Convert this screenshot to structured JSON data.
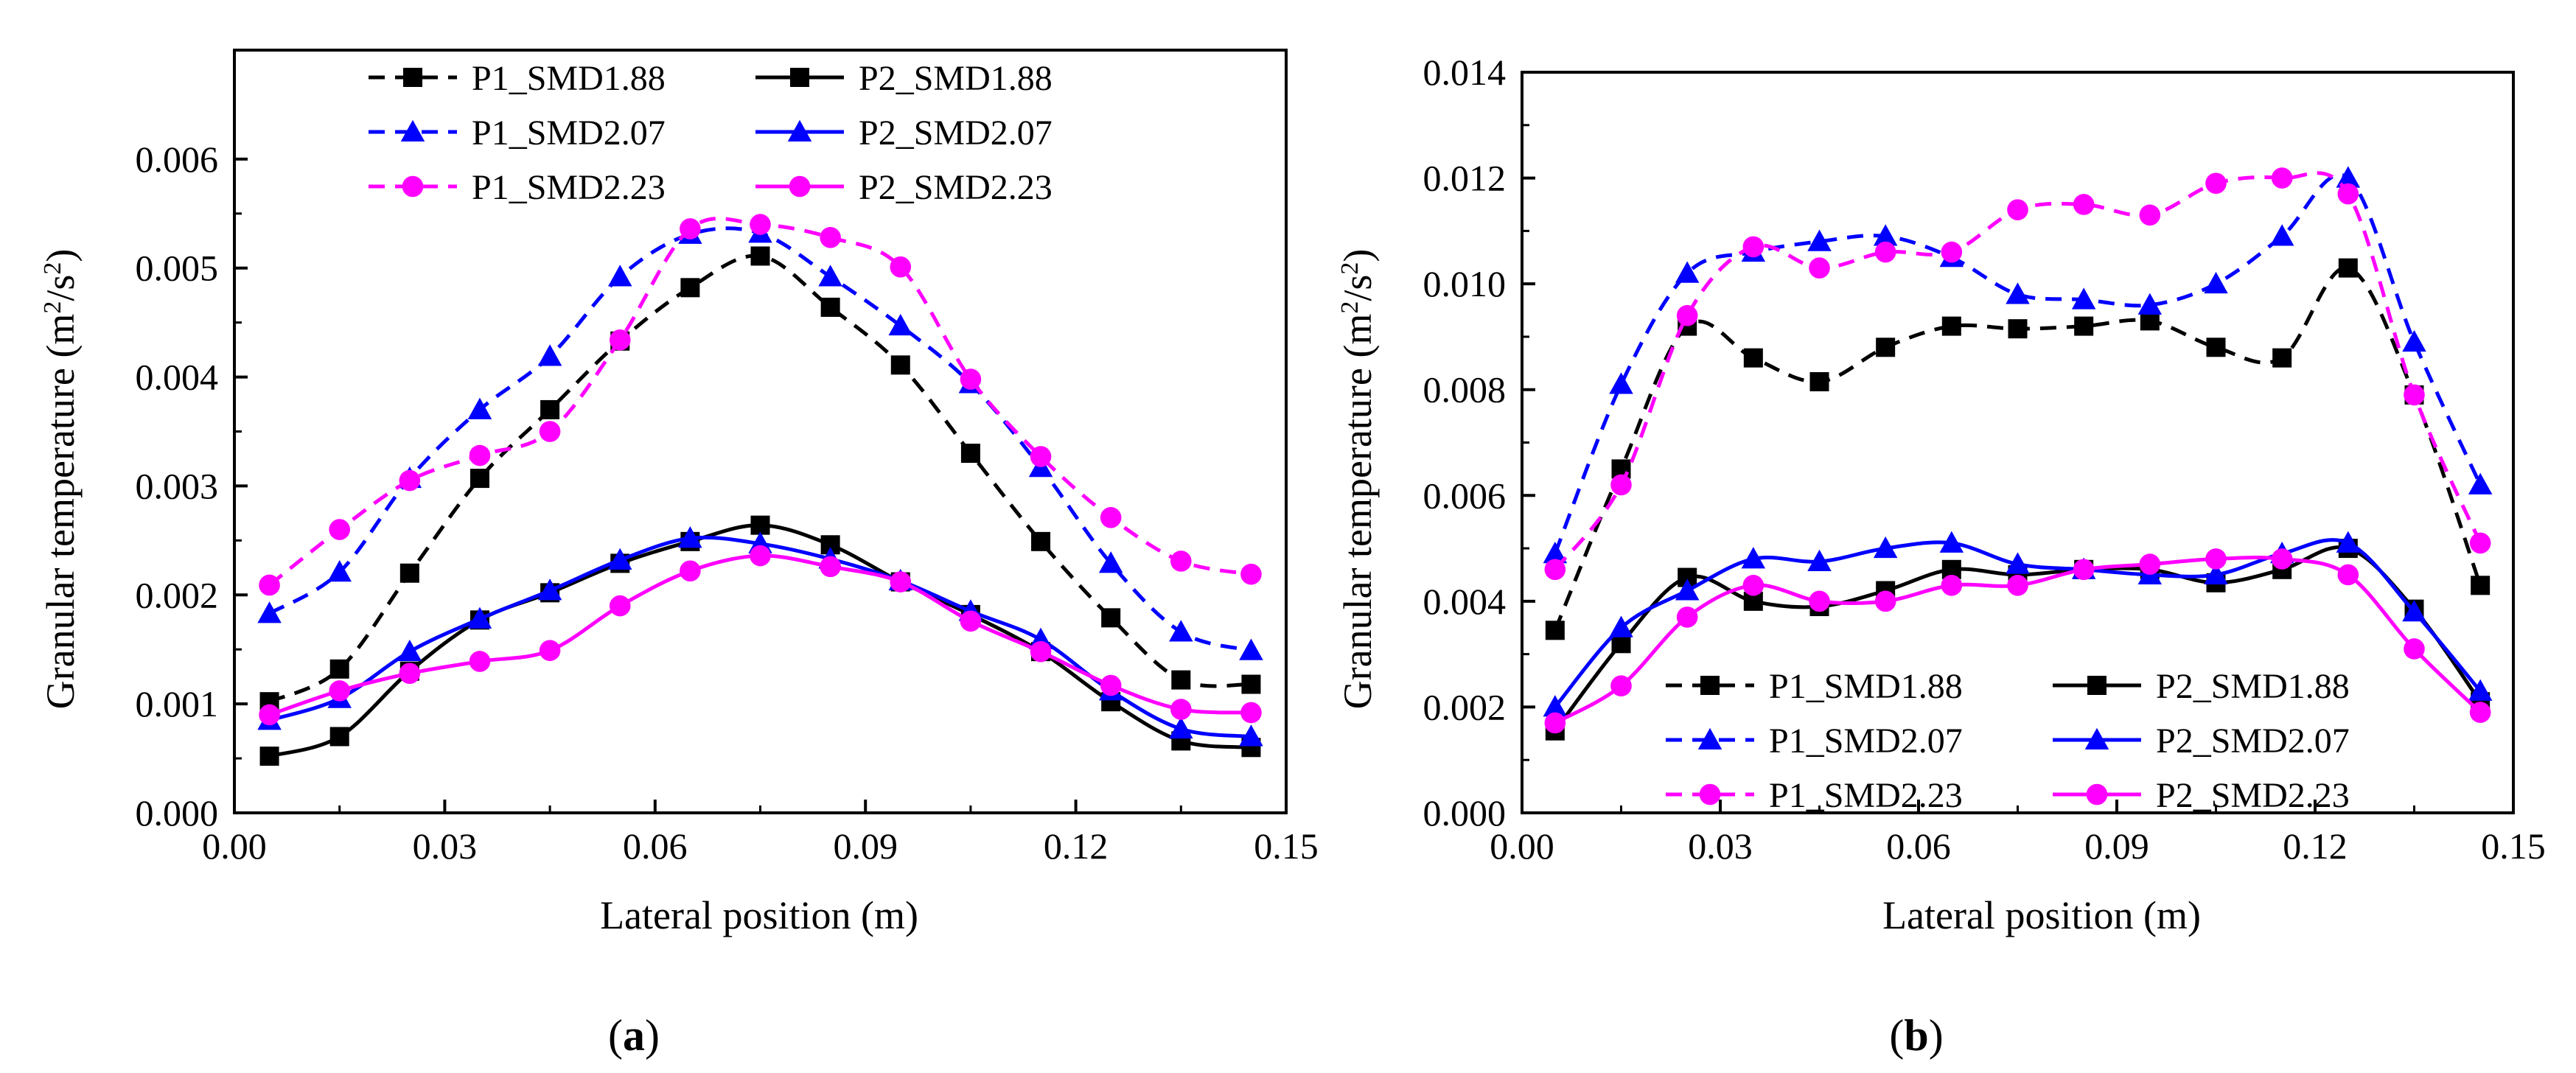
{
  "figure": {
    "panel_labels": [
      {
        "open": "(",
        "letter": "a",
        "close": ")"
      },
      {
        "open": "(",
        "letter": "b",
        "close": ")"
      }
    ]
  },
  "colors": {
    "P1_SMD1.88": "#000000",
    "P2_SMD1.88": "#000000",
    "P1_SMD2.07": "#0000ff",
    "P2_SMD2.07": "#0000ff",
    "P1_SMD2.23": "#ff00ff",
    "P2_SMD2.23": "#ff00ff"
  },
  "chart_data": [
    {
      "type": "line",
      "panel": "a",
      "xlabel": "Lateral position (m)",
      "ylabel": "Granular temperature (m2/s2)",
      "ylabel_parts": {
        "prefix": "Granular temperature (m",
        "sup1": "2",
        "mid": "/s",
        "sup2": "2",
        "suffix": ")"
      },
      "xlim": [
        0.0,
        0.15
      ],
      "ylim": [
        0.0,
        0.007
      ],
      "xticks": [
        0.0,
        0.03,
        0.06,
        0.09,
        0.12,
        0.15
      ],
      "xtick_labels": [
        "0.00",
        "0.03",
        "0.06",
        "0.09",
        "0.12",
        "0.15"
      ],
      "yticks": [
        0.0,
        0.001,
        0.002,
        0.003,
        0.004,
        0.005,
        0.006
      ],
      "ytick_labels": [
        "0.000",
        "0.001",
        "0.002",
        "0.003",
        "0.004",
        "0.005",
        "0.006"
      ],
      "legend_position": "top",
      "x": [
        0.005,
        0.015,
        0.025,
        0.035,
        0.045,
        0.055,
        0.065,
        0.075,
        0.085,
        0.095,
        0.105,
        0.115,
        0.125,
        0.135,
        0.145
      ],
      "series": [
        {
          "name": "P1_SMD1.88",
          "line": "dashed",
          "marker": "square",
          "values": [
            0.00102,
            0.00132,
            0.0022,
            0.00307,
            0.0037,
            0.00433,
            0.00482,
            0.00511,
            0.00464,
            0.00411,
            0.0033,
            0.00249,
            0.00179,
            0.00122,
            0.00118
          ]
        },
        {
          "name": "P2_SMD1.88",
          "line": "solid",
          "marker": "square",
          "values": [
            0.00052,
            0.0007,
            0.0013,
            0.00177,
            0.00202,
            0.00229,
            0.00249,
            0.00264,
            0.00246,
            0.00212,
            0.00182,
            0.00148,
            0.00102,
            0.00066,
            0.0006
          ]
        },
        {
          "name": "P1_SMD2.07",
          "line": "dashed",
          "marker": "triangle",
          "values": [
            0.00183,
            0.00221,
            0.00307,
            0.0037,
            0.00419,
            0.00492,
            0.00531,
            0.00532,
            0.00492,
            0.00447,
            0.00394,
            0.00317,
            0.00229,
            0.00166,
            0.00149
          ]
        },
        {
          "name": "P2_SMD2.07",
          "line": "solid",
          "marker": "triangle",
          "values": [
            0.00085,
            0.00105,
            0.00148,
            0.00178,
            0.00204,
            0.00232,
            0.00252,
            0.00247,
            0.00233,
            0.00213,
            0.00185,
            0.00159,
            0.00112,
            0.00077,
            0.0007
          ]
        },
        {
          "name": "P1_SMD2.23",
          "line": "dashed",
          "marker": "circle",
          "values": [
            0.00209,
            0.0026,
            0.00305,
            0.00328,
            0.0035,
            0.00434,
            0.00536,
            0.0054,
            0.00528,
            0.00501,
            0.00398,
            0.00327,
            0.00271,
            0.00231,
            0.00219
          ]
        },
        {
          "name": "P2_SMD2.23",
          "line": "solid",
          "marker": "circle",
          "values": [
            0.0009,
            0.00112,
            0.00128,
            0.00139,
            0.00149,
            0.0019,
            0.00222,
            0.00236,
            0.00226,
            0.00212,
            0.00176,
            0.00148,
            0.00117,
            0.00095,
            0.00092
          ]
        }
      ]
    },
    {
      "type": "line",
      "panel": "b",
      "xlabel": "Lateral position (m)",
      "ylabel": "Granular temperature (m2/s2)",
      "ylabel_parts": {
        "prefix": "Granular temperature (m",
        "sup1": "2",
        "mid": "/s",
        "sup2": "2",
        "suffix": ")"
      },
      "xlim": [
        0.0,
        0.15
      ],
      "ylim": [
        0.0,
        0.014
      ],
      "xticks": [
        0.0,
        0.03,
        0.06,
        0.09,
        0.12,
        0.15
      ],
      "xtick_labels": [
        "0.00",
        "0.03",
        "0.06",
        "0.09",
        "0.12",
        "0.15"
      ],
      "yticks": [
        0.0,
        0.002,
        0.004,
        0.006,
        0.008,
        0.01,
        0.012,
        0.014
      ],
      "ytick_labels": [
        "0.000",
        "0.002",
        "0.004",
        "0.006",
        "0.008",
        "0.010",
        "0.012",
        "0.014"
      ],
      "legend_position": "bottom",
      "x": [
        0.005,
        0.015,
        0.025,
        0.035,
        0.045,
        0.055,
        0.065,
        0.075,
        0.085,
        0.095,
        0.105,
        0.115,
        0.125,
        0.135,
        0.145
      ],
      "series": [
        {
          "name": "P1_SMD1.88",
          "line": "dashed",
          "marker": "square",
          "values": [
            0.00345,
            0.0065,
            0.0092,
            0.0086,
            0.00815,
            0.0088,
            0.0092,
            0.00915,
            0.0092,
            0.0093,
            0.0088,
            0.0086,
            0.0103,
            0.0079,
            0.0043
          ]
        },
        {
          "name": "P2_SMD1.88",
          "line": "solid",
          "marker": "square",
          "values": [
            0.00155,
            0.0032,
            0.00445,
            0.004,
            0.0039,
            0.0042,
            0.0046,
            0.0045,
            0.0046,
            0.0046,
            0.00435,
            0.0046,
            0.005,
            0.00385,
            0.0021
          ]
        },
        {
          "name": "P1_SMD2.07",
          "line": "dashed",
          "marker": "triangle",
          "values": [
            0.0049,
            0.0081,
            0.0102,
            0.0106,
            0.0108,
            0.0109,
            0.0105,
            0.0098,
            0.0097,
            0.0096,
            0.01,
            0.0109,
            0.012,
            0.0089,
            0.0062
          ]
        },
        {
          "name": "P2_SMD2.07",
          "line": "solid",
          "marker": "triangle",
          "values": [
            0.002,
            0.0035,
            0.0042,
            0.0048,
            0.00475,
            0.005,
            0.0051,
            0.0047,
            0.0046,
            0.0045,
            0.0045,
            0.0049,
            0.0051,
            0.0038,
            0.0023
          ]
        },
        {
          "name": "P1_SMD2.23",
          "line": "dashed",
          "marker": "circle",
          "values": [
            0.0046,
            0.0062,
            0.0094,
            0.0107,
            0.0103,
            0.0106,
            0.0106,
            0.0114,
            0.0115,
            0.0113,
            0.0119,
            0.012,
            0.0117,
            0.0079,
            0.0051
          ]
        },
        {
          "name": "P2_SMD2.23",
          "line": "solid",
          "marker": "circle",
          "values": [
            0.0017,
            0.0024,
            0.0037,
            0.0043,
            0.004,
            0.004,
            0.0043,
            0.0043,
            0.0046,
            0.0047,
            0.0048,
            0.0048,
            0.0045,
            0.0031,
            0.0019
          ]
        }
      ]
    }
  ]
}
